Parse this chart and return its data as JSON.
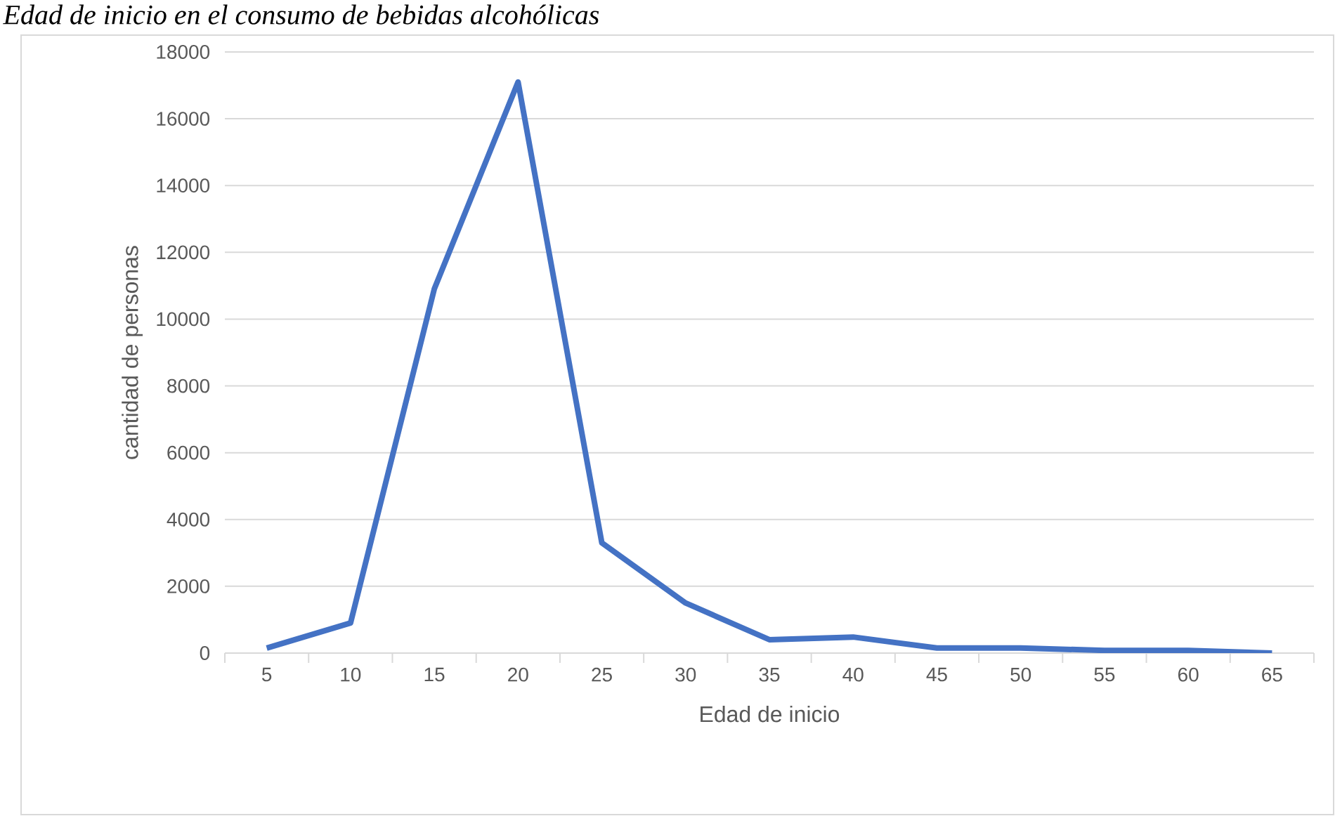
{
  "chart_data": {
    "type": "line",
    "title": "*Edad de inicio en el consumo de bebidas alcohólicas*",
    "xlabel": "Edad de inicio",
    "ylabel": "cantidad de personas",
    "categories": [
      "5",
      "10",
      "15",
      "20",
      "25",
      "30",
      "35",
      "40",
      "45",
      "50",
      "55",
      "60",
      "65"
    ],
    "series": [
      {
        "color": "#4472c4",
        "values": [
          150,
          900,
          10900,
          17100,
          3300,
          1500,
          400,
          480,
          150,
          150,
          80,
          80,
          0
        ]
      }
    ],
    "ylim": [
      0,
      18000
    ],
    "yticks": [
      0,
      2000,
      4000,
      6000,
      8000,
      10000,
      12000,
      14000,
      16000,
      18000
    ],
    "grid": "y",
    "marker": "none",
    "line_style": "solid"
  }
}
